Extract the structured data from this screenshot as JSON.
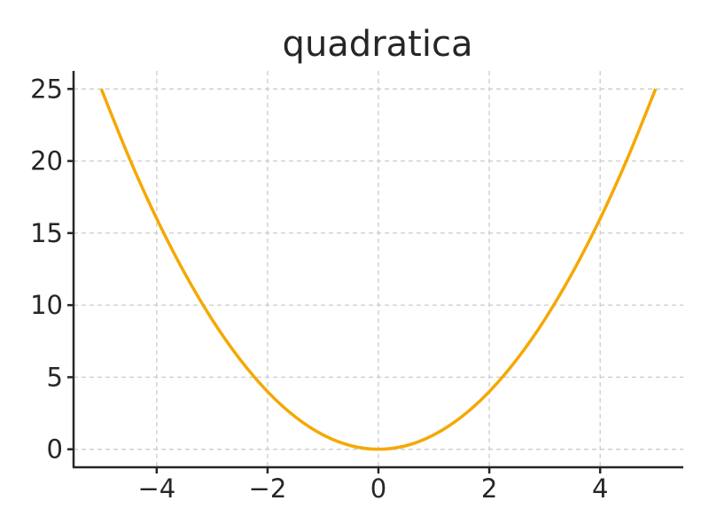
{
  "chart_data": {
    "type": "line",
    "title": "quadratica",
    "xlabel": "",
    "ylabel": "",
    "xlim": [
      -5.5,
      5.5
    ],
    "ylim": [
      -1.25,
      26.25
    ],
    "x_ticks": [
      -4,
      -2,
      0,
      2,
      4
    ],
    "y_ticks": [
      0,
      5,
      10,
      15,
      20,
      25
    ],
    "grid": true,
    "series": [
      {
        "color": "#f5a800",
        "x": [
          -5,
          -4.5,
          -4,
          -3.5,
          -3,
          -2.5,
          -2,
          -1.5,
          -1,
          -0.5,
          0,
          0.5,
          1,
          1.5,
          2,
          2.5,
          3,
          3.5,
          4,
          4.5,
          5
        ],
        "y": [
          25,
          20.25,
          16,
          12.25,
          9,
          6.25,
          4,
          2.25,
          1,
          0.25,
          0,
          0.25,
          1,
          2.25,
          4,
          6.25,
          9,
          12.25,
          16,
          20.25,
          25
        ]
      }
    ]
  }
}
